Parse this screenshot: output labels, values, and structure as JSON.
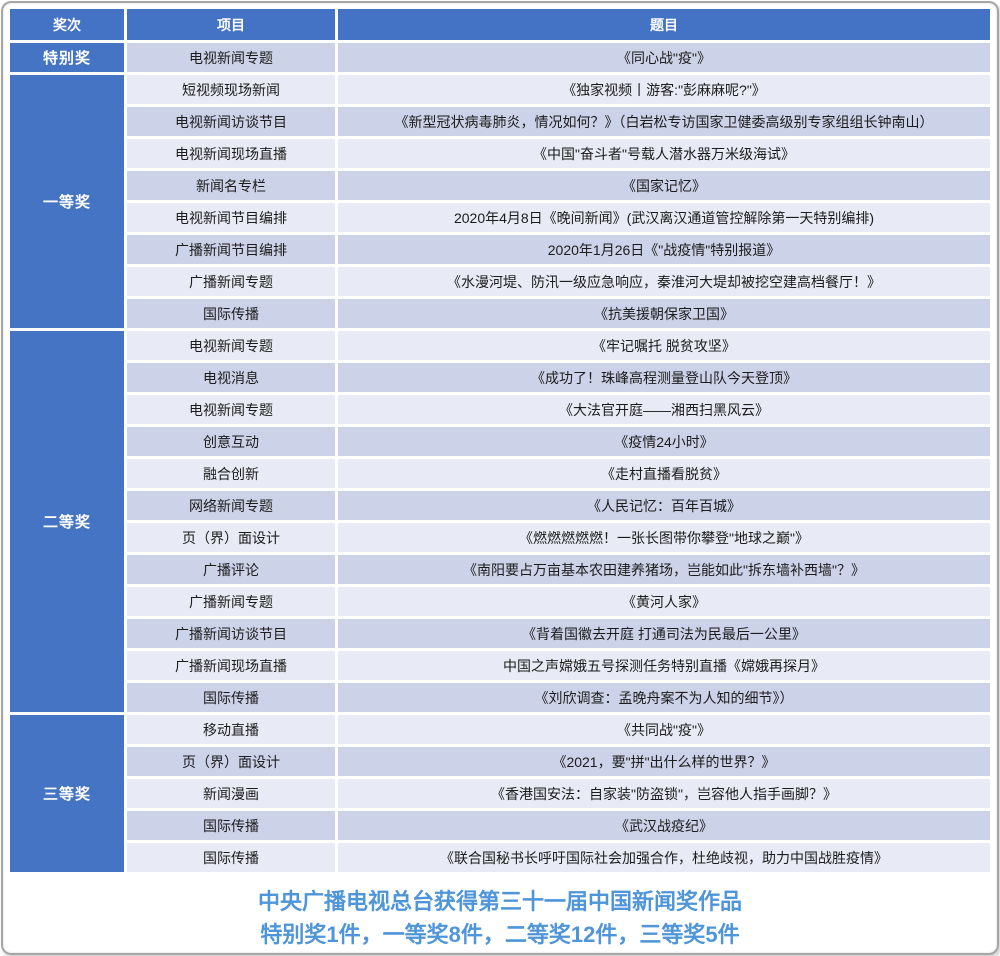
{
  "colors": {
    "header_blue": "#4472C4",
    "award_blue": "#4574C5",
    "row_dark": "#CCD2E8",
    "row_light": "#E8EAF5",
    "caption_blue": "#4E95D9",
    "header_text": "#FFFFFF",
    "cell_text": "#1C1C1C"
  },
  "table": {
    "headers": [
      {
        "label": "奖次"
      },
      {
        "label": "项目"
      },
      {
        "label": "题目"
      }
    ],
    "groups": [
      {
        "award": "特别奖",
        "rows": [
          {
            "category": "电视新闻专题",
            "title": "《同心战\"疫\"》"
          }
        ]
      },
      {
        "award": "一等奖",
        "rows": [
          {
            "category": "短视频现场新闻",
            "title": "《独家视频丨游客:\"彭麻麻呢?\"》"
          },
          {
            "category": "电视新闻访谈节目",
            "title": "《新型冠状病毒肺炎，情况如何？》（白岩松专访国家卫健委高级别专家组组长钟南山）"
          },
          {
            "category": "电视新闻现场直播",
            "title": "《中国\"奋斗者\"号载人潜水器万米级海试》"
          },
          {
            "category": "新闻名专栏",
            "title": "《国家记忆》"
          },
          {
            "category": "电视新闻节目编排",
            "title": "2020年4月8日《晚间新闻》(武汉离汉通道管控解除第一天特别编排)"
          },
          {
            "category": "广播新闻节目编排",
            "title": "2020年1月26日《\"战疫情\"特别报道》"
          },
          {
            "category": "广播新闻专题",
            "title": "《水漫河堤、防汛一级应急响应，秦淮河大堤却被挖空建高档餐厅！》"
          },
          {
            "category": "国际传播",
            "title": "《抗美援朝保家卫国》"
          }
        ]
      },
      {
        "award": "二等奖",
        "rows": [
          {
            "category": "电视新闻专题",
            "title": "《牢记嘱托 脱贫攻坚》"
          },
          {
            "category": "电视消息",
            "title": "《成功了！珠峰高程测量登山队今天登顶》"
          },
          {
            "category": "电视新闻专题",
            "title": "《大法官开庭——湘西扫黑风云》"
          },
          {
            "category": "创意互动",
            "title": "《疫情24小时》"
          },
          {
            "category": "融合创新",
            "title": "《走村直播看脱贫》"
          },
          {
            "category": "网络新闻专题",
            "title": "《人民记忆：百年百城》"
          },
          {
            "category": "页（界）面设计",
            "title": "《燃燃燃燃燃！一张长图带你攀登\"地球之巅\"》"
          },
          {
            "category": "广播评论",
            "title": "《南阳要占万亩基本农田建养猪场，岂能如此\"拆东墙补西墙\"？》"
          },
          {
            "category": "广播新闻专题",
            "title": "《黄河人家》"
          },
          {
            "category": "广播新闻访谈节目",
            "title": "《背着国徽去开庭 打通司法为民最后一公里》"
          },
          {
            "category": "广播新闻现场直播",
            "title": "中国之声嫦娥五号探测任务特别直播《嫦娥再探月》"
          },
          {
            "category": "国际传播",
            "title": "《刘欣调查：孟晚舟案不为人知的细节》）"
          }
        ]
      },
      {
        "award": "三等奖",
        "rows": [
          {
            "category": "移动直播",
            "title": "《共同战\"疫\"》"
          },
          {
            "category": "页（界）面设计",
            "title": "《2021，要\"拼\"出什么样的世界？》"
          },
          {
            "category": "新闻漫画",
            "title": "《香港国安法：自家装\"防盗锁\"，岂容他人指手画脚？》"
          },
          {
            "category": "国际传播",
            "title": "《武汉战疫纪》"
          },
          {
            "category": "国际传播",
            "title": "《联合国秘书长呼吁国际社会加强合作，杜绝歧视，助力中国战胜疫情》"
          }
        ]
      }
    ]
  },
  "caption": {
    "line1": "中央广播电视总台获得第三十一届中国新闻奖作品",
    "line2": "特别奖1件，一等奖8件，二等奖12件，三等奖5件"
  }
}
